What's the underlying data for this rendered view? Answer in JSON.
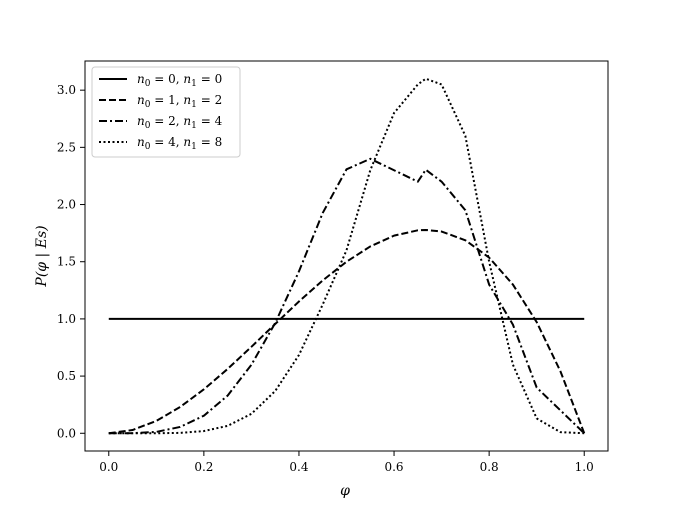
{
  "chart_data": {
    "type": "line",
    "xlabel": "φ",
    "ylabel": "P(φ | Es)",
    "xlim": [
      -0.05,
      1.05
    ],
    "ylim": [
      -0.155,
      3.255
    ],
    "xticks": [
      "0.0",
      "0.2",
      "0.4",
      "0.6",
      "0.8",
      "1.0"
    ],
    "yticks": [
      "0.0",
      "0.5",
      "1.0",
      "1.5",
      "2.0",
      "2.5",
      "3.0"
    ],
    "xtick_values": [
      0.0,
      0.2,
      0.4,
      0.6,
      0.8,
      1.0
    ],
    "ytick_values": [
      0.0,
      0.5,
      1.0,
      1.5,
      2.0,
      2.5,
      3.0
    ],
    "legend_position": "upper-left",
    "grid": false,
    "x": [
      0.0,
      0.05,
      0.1,
      0.15,
      0.2,
      0.25,
      0.3,
      0.35,
      0.4,
      0.45,
      0.5,
      0.55,
      0.6,
      0.65,
      0.6667,
      0.7,
      0.75,
      0.8,
      0.85,
      0.9,
      0.95,
      1.0
    ],
    "series": [
      {
        "name": "n0 = 0, n1 = 0",
        "style": "solid",
        "values": [
          1.0,
          1.0,
          1.0,
          1.0,
          1.0,
          1.0,
          1.0,
          1.0,
          1.0,
          1.0,
          1.0,
          1.0,
          1.0,
          1.0,
          1.0,
          1.0,
          1.0,
          1.0,
          1.0,
          1.0,
          1.0,
          1.0
        ]
      },
      {
        "name": "n0 = 1, n1 = 2",
        "style": "dashed",
        "values": [
          0.0,
          0.0285,
          0.108,
          0.2295,
          0.384,
          0.5625,
          0.756,
          0.9555,
          1.152,
          1.3365,
          1.5,
          1.6335,
          1.728,
          1.7745,
          1.7778,
          1.764,
          1.6875,
          1.536,
          1.3005,
          0.972,
          0.5415,
          0.0
        ]
      },
      {
        "name": "n0 = 2, n1 = 4",
        "style": "dashdot",
        "values": [
          0.0,
          0.0009,
          0.0122,
          0.0553,
          0.1536,
          0.3296,
          0.5989,
          0.9642,
          1.4156,
          1.9266,
          2.3077,
          2.4,
          2.3,
          2.2,
          2.3045,
          2.2,
          1.95,
          1.3,
          0.95,
          0.4,
          0.2,
          0.0
        ]
      },
      {
        "name": "n0 = 4, n1 = 8",
        "style": "dotted",
        "values": [
          0.0,
          0.0,
          0.0002,
          0.0034,
          0.0193,
          0.0647,
          0.1699,
          0.3692,
          0.6845,
          1.1259,
          1.6,
          2.3,
          2.8,
          3.05,
          3.1,
          3.05,
          2.6,
          1.5,
          0.6,
          0.13,
          0.01,
          0.0
        ]
      }
    ]
  },
  "legend": {
    "entries": [
      {
        "n0": "n",
        "n0_sub": "0",
        "n0_val": " = 0,",
        "n1": " n",
        "n1_sub": "1",
        "n1_val": " = 0"
      },
      {
        "n0": "n",
        "n0_sub": "0",
        "n0_val": " = 1,",
        "n1": " n",
        "n1_sub": "1",
        "n1_val": " = 2"
      },
      {
        "n0": "n",
        "n0_sub": "0",
        "n0_val": " = 2,",
        "n1": " n",
        "n1_sub": "1",
        "n1_val": " = 4"
      },
      {
        "n0": "n",
        "n0_sub": "0",
        "n0_val": " = 4,",
        "n1": " n",
        "n1_sub": "1",
        "n1_val": " = 8"
      }
    ]
  }
}
